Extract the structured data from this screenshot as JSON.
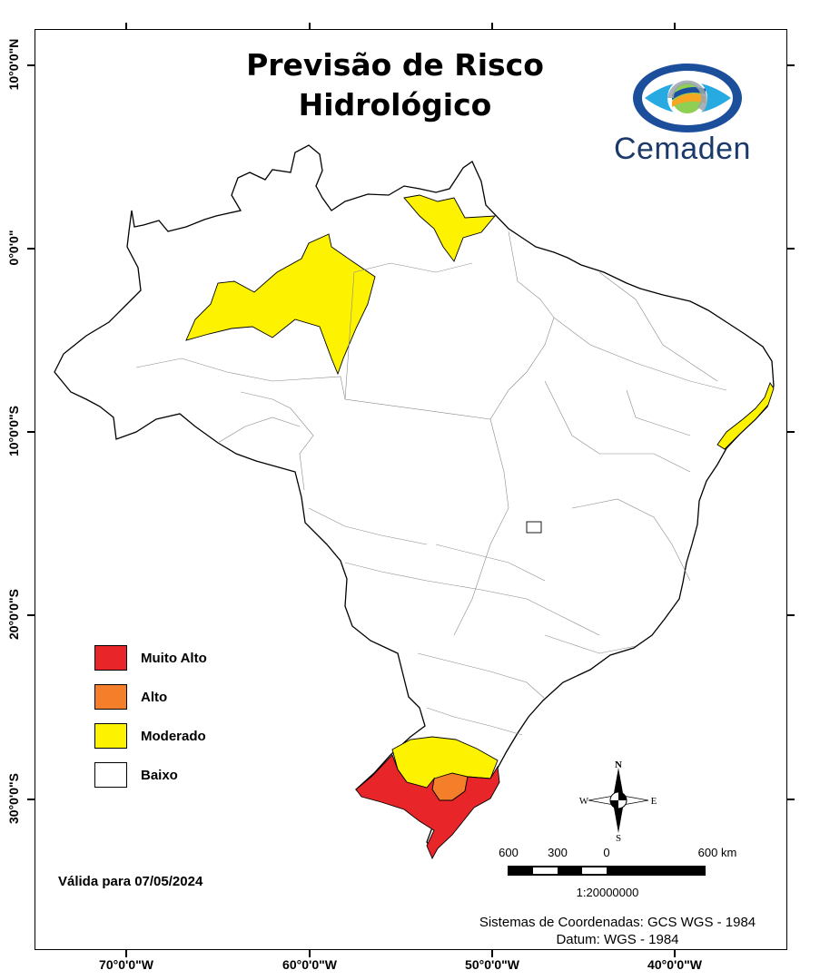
{
  "map": {
    "title_line1": "Previsão de Risco",
    "title_line2": "Hidrológico",
    "logo_text": "Cemaden",
    "validity": "Válida para 07/05/2024",
    "coord_system_line1": "Sistemas de Coordenadas: GCS WGS - 1984",
    "coord_system_line2": "Datum: WGS - 1984",
    "scale_ratio": "1:20000000",
    "scale_labels": [
      "600",
      "300",
      "0",
      "600 km"
    ],
    "north_arrow": {
      "n": "N",
      "s": "S",
      "e": "E",
      "w": "W"
    },
    "lat_labels": [
      "10°0'0\"N",
      "0°0'0\"",
      "10°0'0\"S",
      "20°0'0\"S",
      "30°0'0\"S"
    ],
    "lon_labels": [
      "70°0'0\"W",
      "60°0'0\"W",
      "50°0'0\"W",
      "40°0'0\"W"
    ],
    "legend": [
      {
        "label": "Muito Alto",
        "color": "#e8262a"
      },
      {
        "label": "Alto",
        "color": "#f47e2a"
      },
      {
        "label": "Moderado",
        "color": "#fdf200"
      },
      {
        "label": "Baixo",
        "color": "#ffffff"
      }
    ],
    "regions_risk": [
      {
        "region": "Amazonas / Roraima border area",
        "level": "Moderado"
      },
      {
        "region": "Amapá",
        "level": "Moderado"
      },
      {
        "region": "Alagoas / Sergipe coast",
        "level": "Moderado"
      },
      {
        "region": "Rio Grande do Sul north",
        "level": "Moderado"
      },
      {
        "region": "Rio Grande do Sul central",
        "level": "Alto"
      },
      {
        "region": "Rio Grande do Sul south and west",
        "level": "Muito Alto"
      }
    ],
    "colors": {
      "border": "#000000",
      "internal_borders": "#8a8a8a",
      "logo_blue": "#1b3a6b"
    }
  }
}
